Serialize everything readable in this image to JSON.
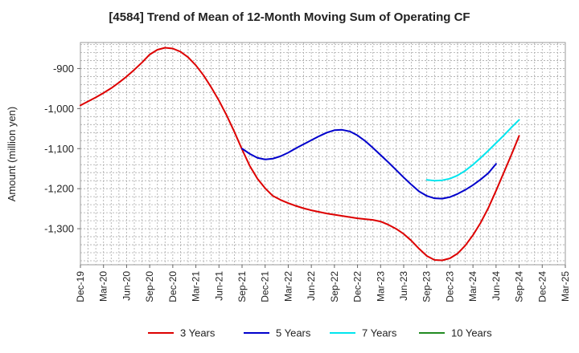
{
  "chart_data": {
    "type": "line",
    "title": "[4584]  Trend of Mean of 12-Month Moving Sum of Operating CF",
    "xlabel": "",
    "ylabel": "Amount (million yen)",
    "ylim": [
      -1390,
      -835
    ],
    "yticks": [
      -900,
      -1000,
      -1100,
      -1200,
      -1300
    ],
    "ytick_labels": [
      "-900",
      "-1,000",
      "-1,100",
      "-1,200",
      "-1,300"
    ],
    "x_range_months": [
      0,
      63
    ],
    "x_ticks": [
      {
        "label": "Dec-19",
        "m": 0
      },
      {
        "label": "Mar-20",
        "m": 3
      },
      {
        "label": "Jun-20",
        "m": 6
      },
      {
        "label": "Sep-20",
        "m": 9
      },
      {
        "label": "Dec-20",
        "m": 12
      },
      {
        "label": "Mar-21",
        "m": 15
      },
      {
        "label": "Jun-21",
        "m": 18
      },
      {
        "label": "Sep-21",
        "m": 21
      },
      {
        "label": "Dec-21",
        "m": 24
      },
      {
        "label": "Mar-22",
        "m": 27
      },
      {
        "label": "Jun-22",
        "m": 30
      },
      {
        "label": "Sep-22",
        "m": 33
      },
      {
        "label": "Dec-22",
        "m": 36
      },
      {
        "label": "Mar-23",
        "m": 39
      },
      {
        "label": "Jun-23",
        "m": 42
      },
      {
        "label": "Sep-23",
        "m": 45
      },
      {
        "label": "Dec-23",
        "m": 48
      },
      {
        "label": "Mar-24",
        "m": 51
      },
      {
        "label": "Jun-24",
        "m": 54
      },
      {
        "label": "Sep-24",
        "m": 57
      },
      {
        "label": "Dec-24",
        "m": 60
      },
      {
        "label": "Mar-25",
        "m": 63
      }
    ],
    "grid": true,
    "legend_position": "bottom",
    "series": [
      {
        "name": "3 Years",
        "color": "#dd0000",
        "points": [
          [
            0,
            -992
          ],
          [
            1,
            -982
          ],
          [
            2,
            -972
          ],
          [
            3,
            -961
          ],
          [
            4,
            -949
          ],
          [
            5,
            -935
          ],
          [
            6,
            -920
          ],
          [
            7,
            -903
          ],
          [
            8,
            -885
          ],
          [
            9,
            -865
          ],
          [
            10,
            -853
          ],
          [
            11,
            -848
          ],
          [
            12,
            -850
          ],
          [
            13,
            -858
          ],
          [
            14,
            -872
          ],
          [
            15,
            -892
          ],
          [
            16,
            -917
          ],
          [
            17,
            -947
          ],
          [
            18,
            -980
          ],
          [
            19,
            -1017
          ],
          [
            20,
            -1058
          ],
          [
            21,
            -1102
          ],
          [
            22,
            -1143
          ],
          [
            23,
            -1175
          ],
          [
            24,
            -1199
          ],
          [
            25,
            -1218
          ],
          [
            26,
            -1228
          ],
          [
            27,
            -1236
          ],
          [
            28,
            -1243
          ],
          [
            29,
            -1249
          ],
          [
            30,
            -1254
          ],
          [
            31,
            -1258
          ],
          [
            32,
            -1262
          ],
          [
            33,
            -1265
          ],
          [
            34,
            -1268
          ],
          [
            35,
            -1271
          ],
          [
            36,
            -1274
          ],
          [
            37,
            -1276
          ],
          [
            38,
            -1278
          ],
          [
            39,
            -1282
          ],
          [
            40,
            -1290
          ],
          [
            41,
            -1300
          ],
          [
            42,
            -1313
          ],
          [
            43,
            -1330
          ],
          [
            44,
            -1350
          ],
          [
            45,
            -1368
          ],
          [
            46,
            -1378
          ],
          [
            47,
            -1379
          ],
          [
            48,
            -1374
          ],
          [
            49,
            -1362
          ],
          [
            50,
            -1342
          ],
          [
            51,
            -1316
          ],
          [
            52,
            -1285
          ],
          [
            53,
            -1248
          ],
          [
            54,
            -1205
          ],
          [
            55,
            -1160
          ],
          [
            56,
            -1115
          ],
          [
            57,
            -1068
          ]
        ]
      },
      {
        "name": "5 Years",
        "color": "#0000cc",
        "points": [
          [
            21,
            -1100
          ],
          [
            22,
            -1113
          ],
          [
            23,
            -1123
          ],
          [
            24,
            -1127
          ],
          [
            25,
            -1125
          ],
          [
            26,
            -1119
          ],
          [
            27,
            -1110
          ],
          [
            28,
            -1099
          ],
          [
            29,
            -1089
          ],
          [
            30,
            -1079
          ],
          [
            31,
            -1069
          ],
          [
            32,
            -1060
          ],
          [
            33,
            -1054
          ],
          [
            34,
            -1053
          ],
          [
            35,
            -1057
          ],
          [
            36,
            -1067
          ],
          [
            37,
            -1081
          ],
          [
            38,
            -1098
          ],
          [
            39,
            -1116
          ],
          [
            40,
            -1134
          ],
          [
            41,
            -1153
          ],
          [
            42,
            -1172
          ],
          [
            43,
            -1190
          ],
          [
            44,
            -1207
          ],
          [
            45,
            -1218
          ],
          [
            46,
            -1224
          ],
          [
            47,
            -1225
          ],
          [
            48,
            -1221
          ],
          [
            49,
            -1213
          ],
          [
            50,
            -1203
          ],
          [
            51,
            -1191
          ],
          [
            52,
            -1177
          ],
          [
            53,
            -1161
          ],
          [
            54,
            -1138
          ]
        ]
      },
      {
        "name": "7 Years",
        "color": "#00e5ee",
        "points": [
          [
            45,
            -1178
          ],
          [
            46,
            -1180
          ],
          [
            47,
            -1179
          ],
          [
            48,
            -1175
          ],
          [
            49,
            -1167
          ],
          [
            50,
            -1155
          ],
          [
            51,
            -1140
          ],
          [
            52,
            -1123
          ],
          [
            53,
            -1105
          ],
          [
            54,
            -1086
          ],
          [
            55,
            -1067
          ],
          [
            56,
            -1047
          ],
          [
            57,
            -1028
          ]
        ]
      },
      {
        "name": "10 Years",
        "color": "#228b22",
        "points": []
      }
    ]
  }
}
